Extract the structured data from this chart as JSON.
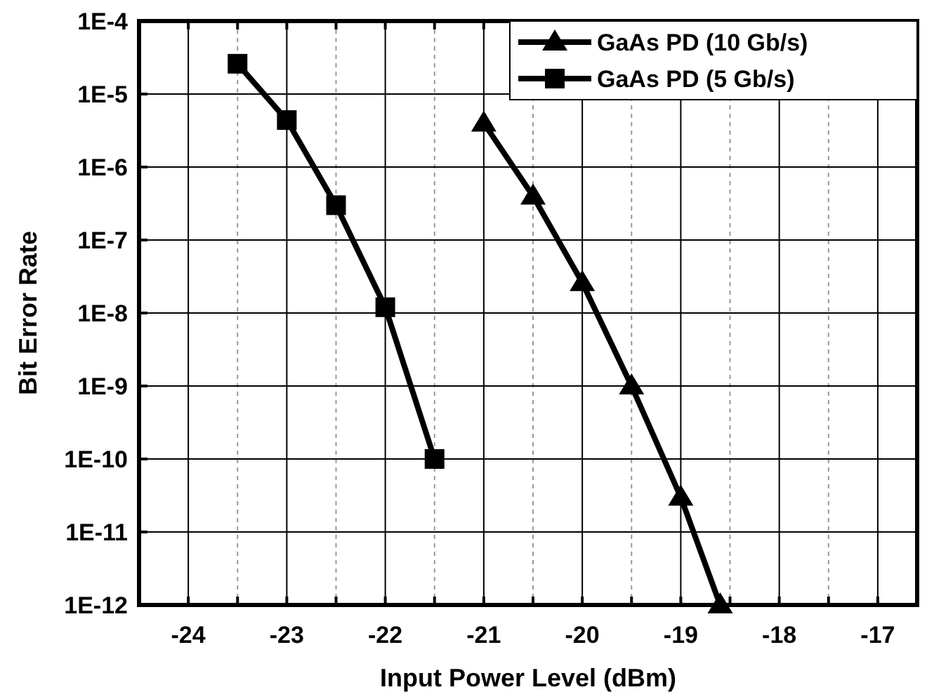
{
  "chart_data": {
    "type": "line",
    "xlabel": "Input Power Level (dBm)",
    "ylabel": "Bit Error Rate",
    "log": "y",
    "grid": true,
    "legend": "top right",
    "line_style": "solid",
    "xlim": [
      -24.5,
      -16.6
    ],
    "xticks": [
      {
        "value": -24.5,
        "label": null
      },
      -24,
      {
        "value": -23.5,
        "label": null
      },
      -23,
      {
        "value": -22.5,
        "label": null
      },
      -22,
      {
        "value": -21.5,
        "label": null
      },
      -21,
      {
        "value": -20.5,
        "label": null
      },
      -20,
      {
        "value": -19.5,
        "label": null
      },
      -19,
      {
        "value": -18.5,
        "label": null
      },
      -18,
      {
        "value": -17.5,
        "label": null
      },
      -17
    ],
    "ylim": [
      1e-12,
      0.0001
    ],
    "yticks": [
      {
        "value": 1e-12,
        "label": "1E-12"
      },
      {
        "value": 1e-11,
        "label": "1E-11"
      },
      {
        "value": 1e-10,
        "label": "1E-10"
      },
      {
        "value": 1e-09,
        "label": "1E-9"
      },
      {
        "value": 1e-08,
        "label": "1E-8"
      },
      {
        "value": 1e-07,
        "label": "1E-7"
      },
      {
        "value": 1e-06,
        "label": "1E-6"
      },
      {
        "value": 1e-05,
        "label": "1E-5"
      },
      {
        "value": 0.0001,
        "label": "1E-4"
      }
    ],
    "series": [
      {
        "name": "GaAs PD (10 Gb/s)",
        "color": "#000000",
        "marker": "triangle",
        "x": [
          -21,
          -20.5,
          -20,
          -19.5,
          -19,
          -18.6
        ],
        "values": [
          4e-06,
          4e-07,
          2.6e-08,
          1e-09,
          3e-11,
          1e-12
        ]
      },
      {
        "name": "GaAs PD (5 Gb/s)",
        "color": "#000000",
        "marker": "square",
        "x": [
          -23.5,
          -23,
          -22.5,
          -22,
          -21.5
        ],
        "values": [
          2.6e-05,
          4.4e-06,
          3e-07,
          1.2e-08,
          1e-10
        ]
      }
    ]
  }
}
